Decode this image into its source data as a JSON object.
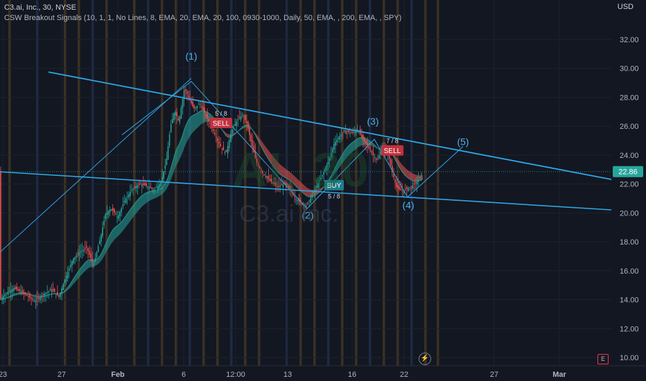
{
  "header": {
    "symbol_line": "C3.ai, Inc., 30, NYSE",
    "indicator_line": "CSW Breakout Signals (10, 1, 1, No Lines, 8, EMA, 20, EMA, 20, 100, 0930-1000, Daily, 50, EMA, , 200, EMA, , SPY)"
  },
  "currency": "USD",
  "watermark": {
    "symbol": "AI, 30",
    "name": "C3.ai Inc."
  },
  "icons": {
    "replay": "lightning-icon",
    "earnings": "E"
  },
  "colors": {
    "background": "#131722",
    "trendline": "#2ea7e6",
    "wave": "#2ea7e6",
    "up": "#26a69a",
    "down": "#ef5350",
    "sell_badge": "#c1323f",
    "buy_badge": "#1e7f8f",
    "session_band_orange": "#4a3a24",
    "session_band_blue": "#23304f"
  },
  "chart_data": {
    "type": "candlestick",
    "title": "C3.ai, Inc., 30, NYSE",
    "x_axis": {
      "ticks": [
        "23",
        "27",
        "Feb",
        "6",
        "12:00",
        "13",
        "16",
        "22",
        "27",
        "Mar"
      ],
      "bold_ticks": [
        "Feb",
        "Mar"
      ]
    },
    "y_axis": {
      "ticks": [
        "10.00",
        "12.00",
        "14.00",
        "16.00",
        "18.00",
        "20.00",
        "22.00",
        "24.00",
        "26.00",
        "28.00",
        "30.00",
        "32.00"
      ],
      "ylim": [
        9.8,
        34.6
      ],
      "unit": "USD"
    },
    "last_price": {
      "value": 22.86,
      "label": "22.86"
    },
    "wave_labels": [
      {
        "label": "(1)",
        "price": 30.6
      },
      {
        "label": "(2)",
        "price": 19.6
      },
      {
        "label": "(3)",
        "price": 26.1
      },
      {
        "label": "(4)",
        "price": 20.3
      },
      {
        "label": "(5)",
        "price": 24.7
      }
    ],
    "signals": [
      {
        "type": "SELL",
        "ratio": "5 / 8",
        "price": 26.2
      },
      {
        "type": "BUY",
        "ratio": "5 / 8",
        "price": 21.9
      },
      {
        "type": "SELL",
        "ratio": "7 / 8",
        "price": 24.3
      }
    ],
    "grid": true,
    "legend": "none"
  }
}
